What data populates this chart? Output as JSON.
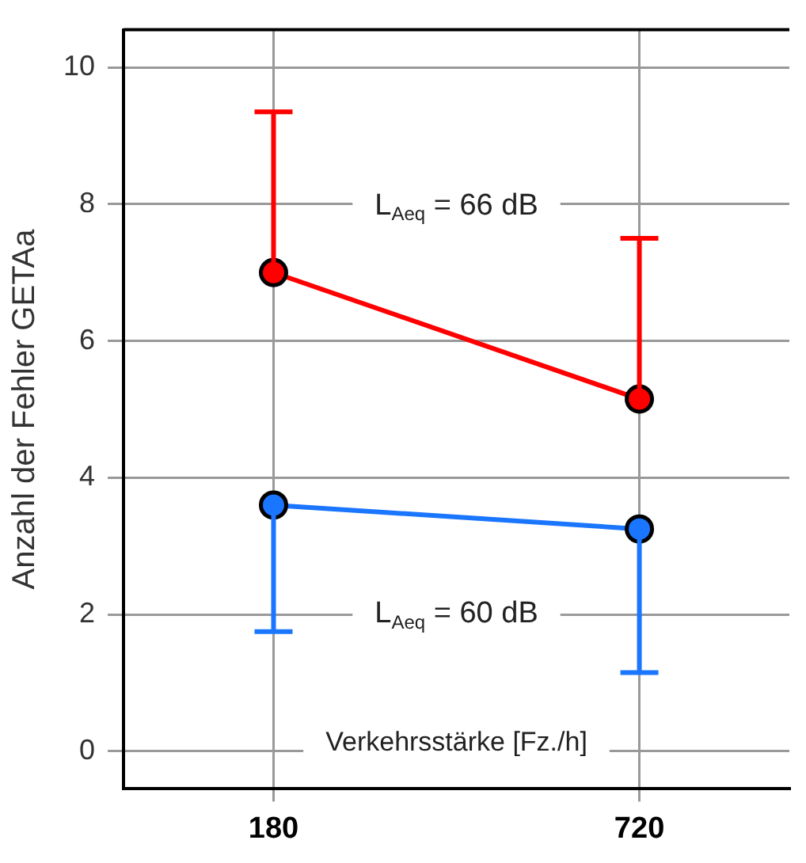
{
  "chart_data": {
    "type": "line",
    "xlabel": "Verkehrsstärke [Fz./h]",
    "ylabel": "Anzahl der Fehler GETAa",
    "categories": [
      "180",
      "720"
    ],
    "series": [
      {
        "name": "L$_{Aeq}$ = 66 dB",
        "color": "#ff0000",
        "values": [
          7.0,
          5.15
        ],
        "errors": [
          [
            7.0,
            9.35
          ],
          [
            5.15,
            7.5
          ]
        ]
      },
      {
        "name": "L$_{Aeq}$ = 60 dB",
        "color": "#1a75ff",
        "values": [
          3.6,
          3.25
        ],
        "errors": [
          [
            1.75,
            3.6
          ],
          [
            1.15,
            3.25
          ]
        ]
      }
    ],
    "ylim": [
      -0.55,
      10.55
    ],
    "yticks": [
      0,
      2,
      4,
      6,
      8,
      10
    ],
    "grid": true,
    "legend": false,
    "marker": "circle",
    "line_style": "solid"
  }
}
